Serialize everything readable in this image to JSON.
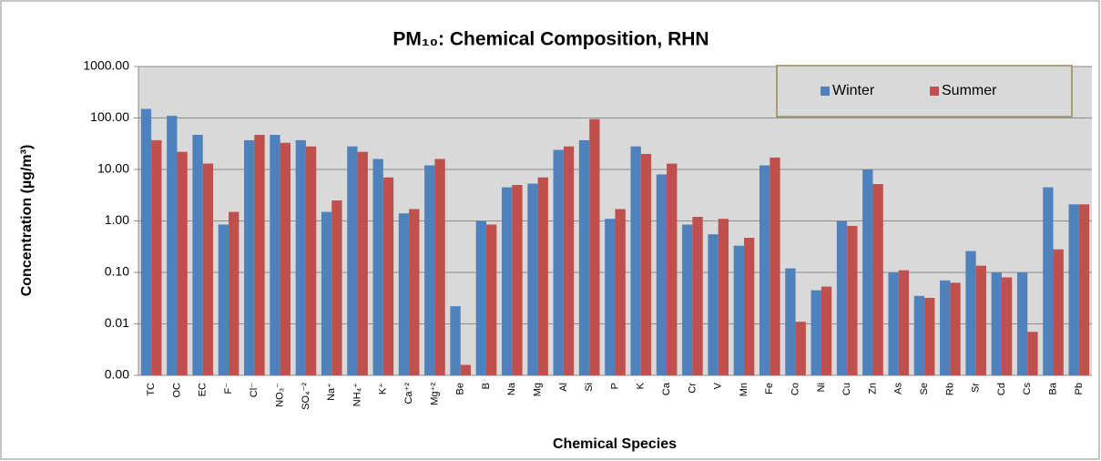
{
  "chart_data": {
    "type": "bar",
    "title": "PM₁₀: Chemical Composition, RHN",
    "x_label": "Chemical Species",
    "y_label": "Concentration (µg/m³)",
    "categories": [
      "TC",
      "OC",
      "EC",
      "F⁻",
      "Cl⁻",
      "NO₃⁻",
      "SO₄⁻²",
      "Na⁺",
      "NH₄⁺",
      "K⁺",
      "Ca⁺²",
      "Mg⁺²",
      "Be",
      "B",
      "Na",
      "Mg",
      "Al",
      "Si",
      "P",
      "K",
      "Ca",
      "Cr",
      "V",
      "Mn",
      "Fe",
      "Co",
      "Ni",
      "Cu",
      "Zn",
      "As",
      "Se",
      "Rb",
      "Sr",
      "Cd",
      "Cs",
      "Ba",
      "Pb"
    ],
    "series": [
      {
        "name": "Winter",
        "color": "#4f81bd",
        "values": [
          150,
          110,
          47,
          0.85,
          37,
          47,
          37,
          1.5,
          28,
          16,
          1.4,
          12,
          0.022,
          1.0,
          4.5,
          5.3,
          24,
          37,
          1.1,
          28,
          8,
          0.85,
          0.55,
          0.33,
          12,
          0.12,
          0.045,
          1.0,
          10,
          0.1,
          0.035,
          0.07,
          0.26,
          0.1,
          0.1,
          4.5,
          2.1
        ]
      },
      {
        "name": "Summer",
        "color": "#c0504d",
        "values": [
          37,
          22,
          13,
          1.5,
          47,
          33,
          28,
          2.5,
          22,
          7,
          1.7,
          16,
          0.0016,
          0.85,
          5,
          7,
          28,
          95,
          1.7,
          20,
          13,
          1.2,
          1.1,
          0.47,
          17,
          0.011,
          0.053,
          0.8,
          5.2,
          0.11,
          0.032,
          0.063,
          0.135,
          0.08,
          0.007,
          0.28,
          2.1
        ]
      }
    ],
    "ylim": [
      0.001,
      1000
    ],
    "yticks": [
      {
        "value": 0.001,
        "label": "0.00"
      },
      {
        "value": 0.01,
        "label": "0.01"
      },
      {
        "value": 0.1,
        "label": "0.10"
      },
      {
        "value": 1,
        "label": "1.00"
      },
      {
        "value": 10,
        "label": "10.00"
      },
      {
        "value": 100,
        "label": "100.00"
      },
      {
        "value": 1000,
        "label": "1000.00"
      }
    ],
    "log_scale": true,
    "grid": true,
    "legend": "upper right"
  }
}
